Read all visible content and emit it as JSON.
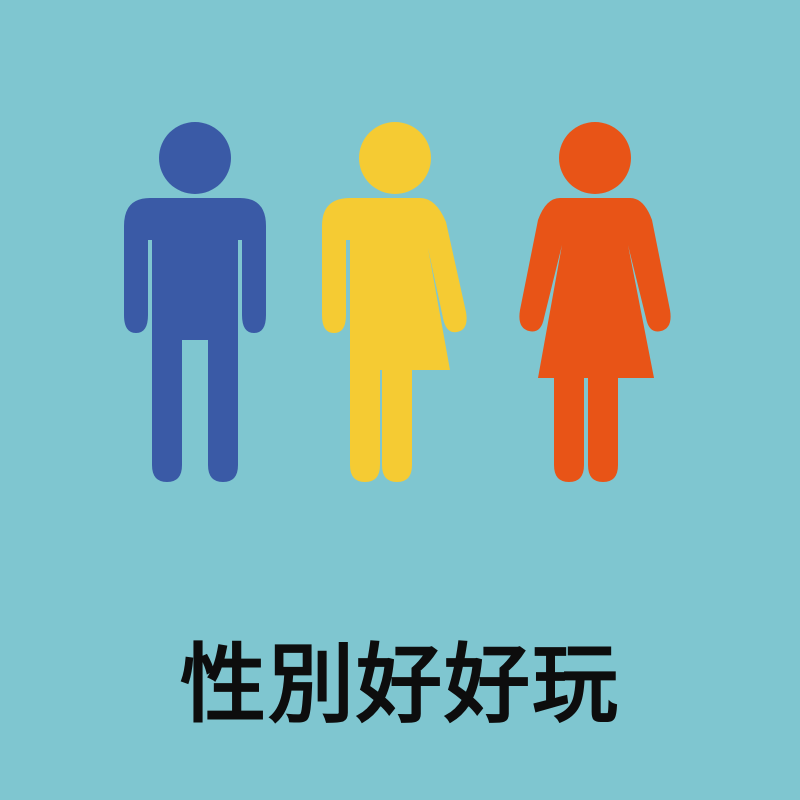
{
  "caption": {
    "text": "性別好好玩"
  },
  "figures": [
    {
      "name": "male-figure-icon",
      "color": "#3a5aa6"
    },
    {
      "name": "nonbinary-figure-icon",
      "color": "#f5cb33"
    },
    {
      "name": "female-figure-icon",
      "color": "#e85417"
    }
  ],
  "background_color": "#7fc6d0"
}
